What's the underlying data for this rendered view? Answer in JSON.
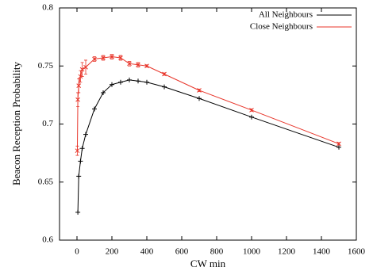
{
  "chart_data": {
    "type": "line",
    "xlabel": "CW min",
    "ylabel": "Beacon Reception Probability",
    "xlim": [
      -100,
      1600
    ],
    "xticks": [
      0,
      200,
      400,
      600,
      800,
      1000,
      1200,
      1400,
      1600
    ],
    "ylim": [
      0.6,
      0.8
    ],
    "yticks": [
      0.6,
      0.65,
      0.7,
      0.75,
      0.8
    ],
    "legend": "top-right",
    "series": [
      {
        "name": "All Neighbours",
        "color": "#000000",
        "marker": "plus",
        "x": [
          5,
          10,
          20,
          30,
          50,
          100,
          150,
          200,
          250,
          300,
          350,
          400,
          500,
          700,
          1000,
          1500
        ],
        "values": [
          0.624,
          0.655,
          0.668,
          0.679,
          0.691,
          0.713,
          0.727,
          0.734,
          0.736,
          0.738,
          0.737,
          0.736,
          0.732,
          0.722,
          0.706,
          0.68
        ]
      },
      {
        "name": "Close Neighbours",
        "color": "#e8352a",
        "marker": "cross",
        "x": [
          2,
          5,
          10,
          20,
          30,
          50,
          100,
          150,
          200,
          250,
          300,
          350,
          400,
          500,
          700,
          1000,
          1500
        ],
        "values": [
          0.677,
          0.721,
          0.733,
          0.741,
          0.747,
          0.749,
          0.756,
          0.757,
          0.758,
          0.757,
          0.752,
          0.751,
          0.75,
          0.743,
          0.729,
          0.712,
          0.683
        ],
        "errors": [
          0.004,
          0.006,
          0.006,
          0.005,
          0.006,
          0.006,
          0.002,
          0.002,
          0.002,
          0.002,
          0.002,
          0.002,
          0.001,
          0.001,
          0.001,
          0.001,
          0.001
        ]
      }
    ]
  }
}
